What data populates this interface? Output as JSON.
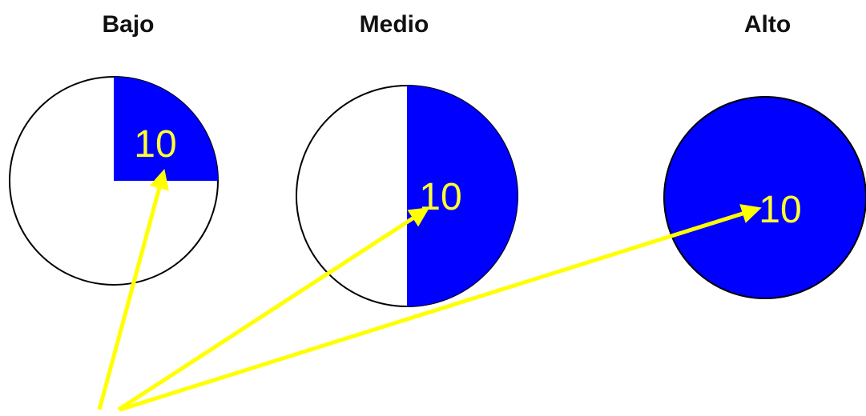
{
  "colors": {
    "fill": "#0000ff",
    "outline": "#000000",
    "value_text": "#ffff33",
    "arrows": "#ffff00",
    "heading_text": "#111111"
  },
  "panels": [
    {
      "heading": "Bajo",
      "value": "10",
      "filled_fraction": 0.25
    },
    {
      "heading": "Medio",
      "value": "10",
      "filled_fraction": 0.5
    },
    {
      "heading": "Alto",
      "value": "10",
      "filled_fraction": 1.0
    }
  ]
}
